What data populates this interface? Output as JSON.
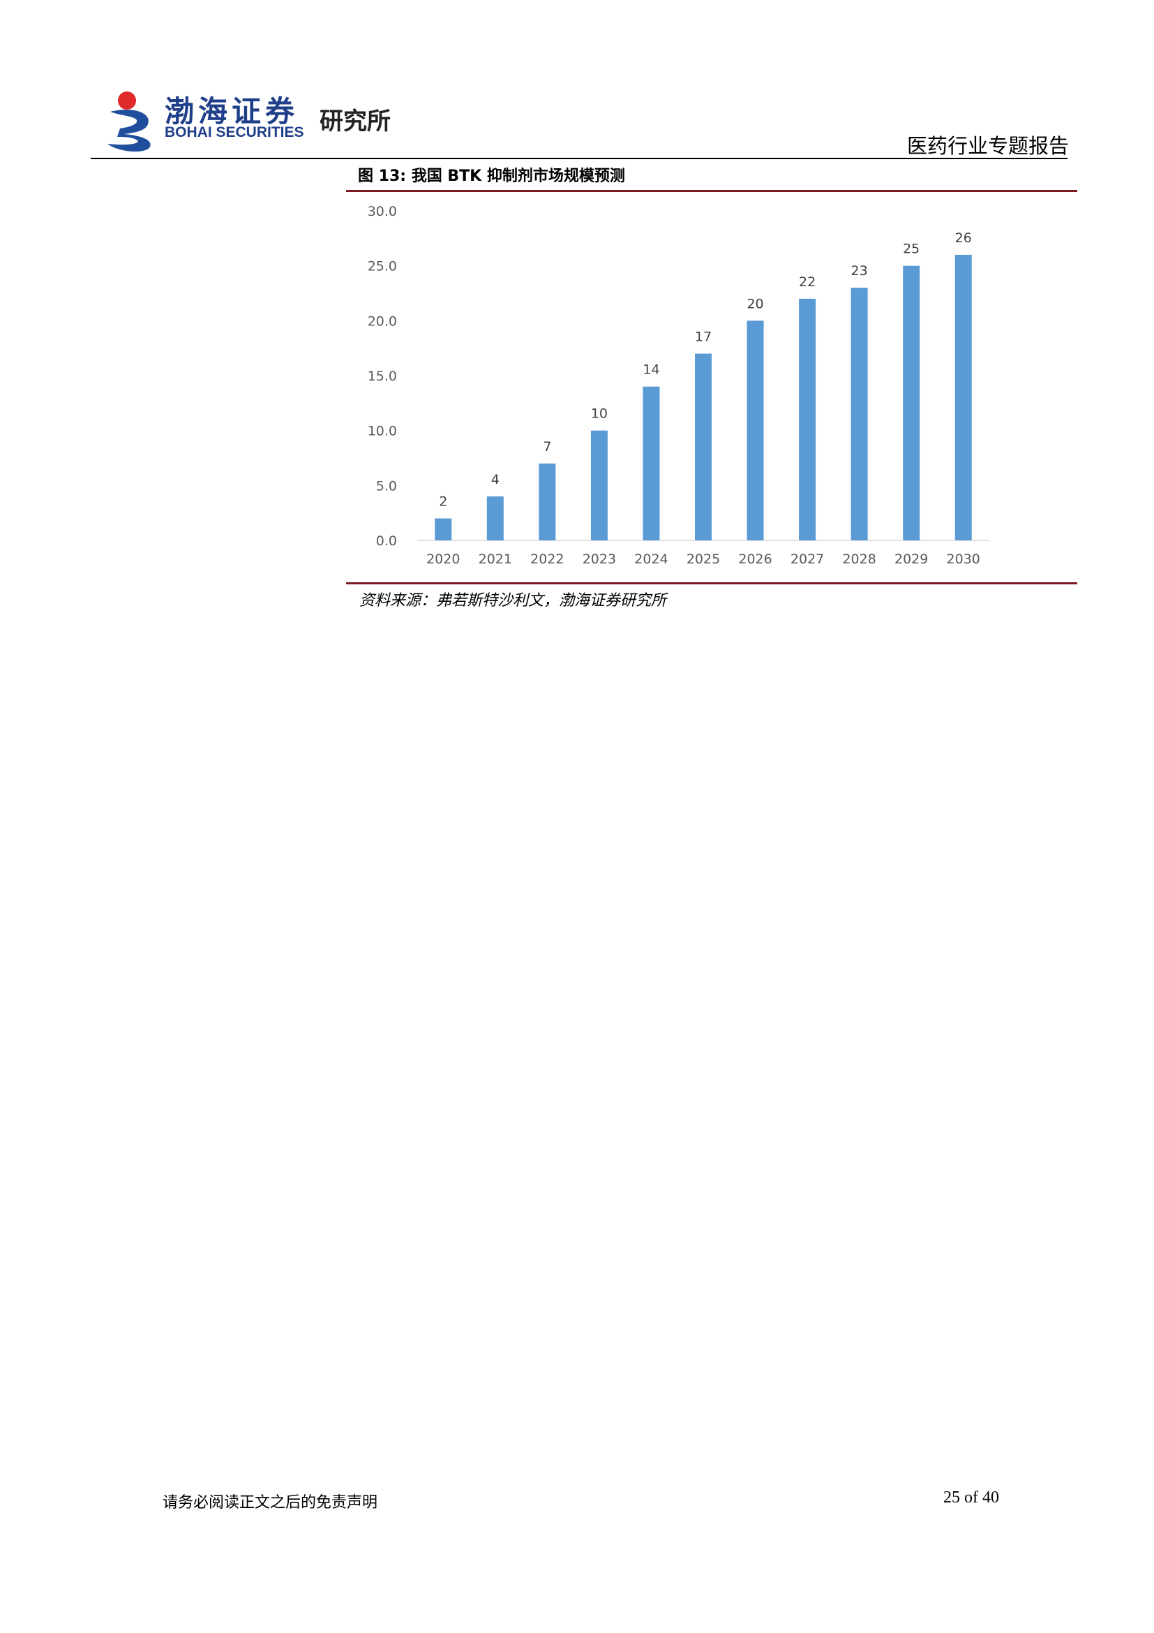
{
  "header": {
    "logo_cn": "渤海证券",
    "logo_en": "BOHAI SECURITIES",
    "institute": "研究所",
    "report_type": "医药行业专题报告"
  },
  "figure": {
    "title": "图 13:  我国 BTK 抑制剂市场规模预测",
    "source": "资料来源：弗若斯特沙利文，渤海证券研究所"
  },
  "chart_data": {
    "type": "bar",
    "title": "",
    "xlabel": "",
    "ylabel": "",
    "categories": [
      "2020",
      "2021",
      "2022",
      "2023",
      "2024",
      "2025",
      "2026",
      "2027",
      "2028",
      "2029",
      "2030"
    ],
    "values": [
      2,
      4,
      7,
      10,
      14,
      17,
      20,
      22,
      23,
      25,
      26
    ],
    "data_labels": [
      "2",
      "4",
      "7",
      "10",
      "14",
      "17",
      "20",
      "22",
      "23",
      "25",
      "26"
    ],
    "ylim": [
      0,
      30
    ],
    "yticks": [
      "0.0",
      "5.0",
      "10.0",
      "15.0",
      "20.0",
      "25.0",
      "30.0"
    ],
    "grid": false,
    "bar_color": "#5b9bd5"
  },
  "footer": {
    "disclaimer": "请务必阅读正文之后的免责声明",
    "page": "25 of 40"
  }
}
